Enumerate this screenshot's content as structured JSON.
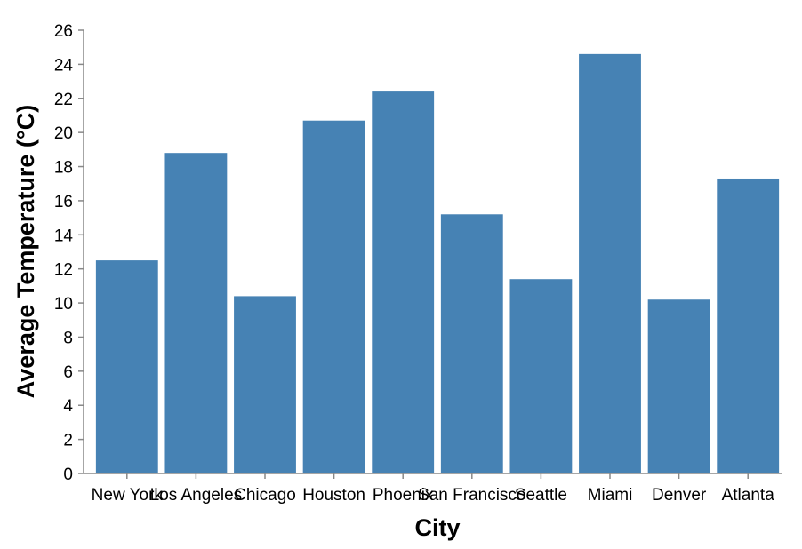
{
  "chart_data": {
    "type": "bar",
    "categories": [
      "New York",
      "Los Angeles",
      "Chicago",
      "Houston",
      "Phoenix",
      "San Francisco",
      "Seattle",
      "Miami",
      "Denver",
      "Atlanta"
    ],
    "values": [
      12.5,
      18.8,
      10.4,
      20.7,
      22.4,
      15.2,
      11.4,
      24.6,
      10.2,
      17.3
    ],
    "xlabel": "City",
    "ylabel": "Average Temperature (°C)",
    "ylim": [
      0,
      26
    ],
    "yticks": [
      0,
      2,
      4,
      6,
      8,
      10,
      12,
      14,
      16,
      18,
      20,
      22,
      24,
      26
    ],
    "grid": false,
    "bar_color": "#4682b4",
    "axis_color": "#888888"
  }
}
